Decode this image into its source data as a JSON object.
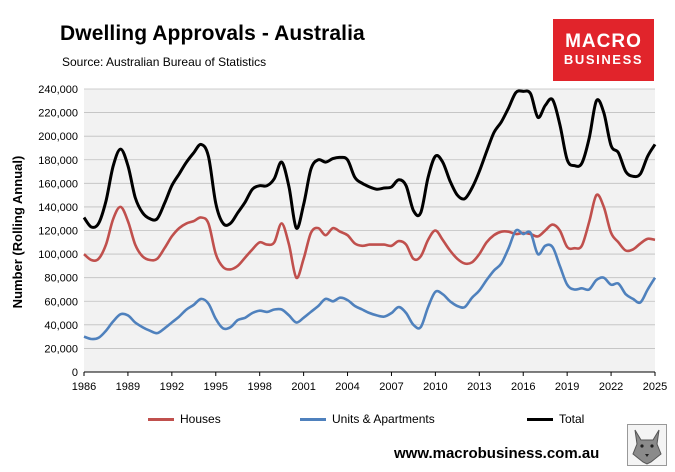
{
  "header": {
    "title": "Dwelling Approvals - Australia",
    "source": "Source: Australian Bureau of Statistics",
    "logo_line1": "MACRO",
    "logo_line2": "BUSINESS"
  },
  "footer": {
    "website": "www.macrobusiness.com.au"
  },
  "chart_data": {
    "type": "line",
    "title": "Dwelling Approvals - Australia",
    "xlabel": "",
    "ylabel": "Number (Rolling Annual)",
    "ylim": [
      0,
      240000
    ],
    "xlim": [
      1986,
      2025
    ],
    "yticks": [
      0,
      20000,
      40000,
      60000,
      80000,
      100000,
      120000,
      140000,
      160000,
      180000,
      200000,
      220000,
      240000
    ],
    "ytick_labels": [
      "0",
      "20,000",
      "40,000",
      "60,000",
      "80,000",
      "100,000",
      "120,000",
      "140,000",
      "160,000",
      "180,000",
      "200,000",
      "220,000",
      "240,000"
    ],
    "xticks": [
      1986,
      1989,
      1992,
      1995,
      1998,
      2001,
      2004,
      2007,
      2010,
      2013,
      2016,
      2019,
      2022,
      2025
    ],
    "xtick_labels": [
      "1986",
      "1989",
      "1992",
      "1995",
      "1998",
      "2001",
      "2004",
      "2007",
      "2010",
      "2013",
      "2016",
      "2019",
      "2022",
      "2025"
    ],
    "grid": "horizontal",
    "legend_position": "bottom",
    "colors": {
      "Houses": "#c0504d",
      "Units & Apartments": "#4f81bd",
      "Total": "#000000"
    },
    "series": [
      {
        "name": "Houses",
        "points": [
          [
            1986,
            100000
          ],
          [
            1986.5,
            95000
          ],
          [
            1987,
            96000
          ],
          [
            1987.5,
            108000
          ],
          [
            1988,
            130000
          ],
          [
            1988.5,
            140000
          ],
          [
            1989,
            128000
          ],
          [
            1989.5,
            108000
          ],
          [
            1990,
            98000
          ],
          [
            1990.5,
            95000
          ],
          [
            1991,
            96000
          ],
          [
            1991.5,
            105000
          ],
          [
            1992,
            115000
          ],
          [
            1992.5,
            122000
          ],
          [
            1993,
            126000
          ],
          [
            1993.5,
            128000
          ],
          [
            1994,
            131000
          ],
          [
            1994.5,
            126000
          ],
          [
            1995,
            100000
          ],
          [
            1995.5,
            89000
          ],
          [
            1996,
            87000
          ],
          [
            1996.5,
            90000
          ],
          [
            1997,
            97000
          ],
          [
            1997.5,
            104000
          ],
          [
            1998,
            110000
          ],
          [
            1998.5,
            108000
          ],
          [
            1999,
            110000
          ],
          [
            1999.5,
            126000
          ],
          [
            2000,
            108000
          ],
          [
            2000.5,
            80000
          ],
          [
            2001,
            96000
          ],
          [
            2001.5,
            118000
          ],
          [
            2002,
            122000
          ],
          [
            2002.5,
            116000
          ],
          [
            2003,
            122000
          ],
          [
            2003.5,
            119000
          ],
          [
            2004,
            116000
          ],
          [
            2004.5,
            109000
          ],
          [
            2005,
            107000
          ],
          [
            2005.5,
            108000
          ],
          [
            2006,
            108000
          ],
          [
            2006.5,
            108000
          ],
          [
            2007,
            107000
          ],
          [
            2007.5,
            111000
          ],
          [
            2008,
            108000
          ],
          [
            2008.5,
            96000
          ],
          [
            2009,
            98000
          ],
          [
            2009.5,
            112000
          ],
          [
            2010,
            120000
          ],
          [
            2010.5,
            112000
          ],
          [
            2011,
            103000
          ],
          [
            2011.5,
            96000
          ],
          [
            2012,
            92000
          ],
          [
            2012.5,
            93000
          ],
          [
            2013,
            100000
          ],
          [
            2013.5,
            110000
          ],
          [
            2014,
            116000
          ],
          [
            2014.5,
            119000
          ],
          [
            2015,
            119000
          ],
          [
            2015.5,
            117000
          ],
          [
            2016,
            118000
          ],
          [
            2016.5,
            117000
          ],
          [
            2017,
            115000
          ],
          [
            2017.5,
            120000
          ],
          [
            2018,
            125000
          ],
          [
            2018.5,
            120000
          ],
          [
            2019,
            106000
          ],
          [
            2019.5,
            105000
          ],
          [
            2020,
            107000
          ],
          [
            2020.5,
            127000
          ],
          [
            2021,
            150000
          ],
          [
            2021.5,
            140000
          ],
          [
            2022,
            118000
          ],
          [
            2022.5,
            110000
          ],
          [
            2023,
            103000
          ],
          [
            2023.5,
            104000
          ],
          [
            2024,
            109000
          ],
          [
            2024.5,
            113000
          ],
          [
            2025,
            112000
          ]
        ]
      },
      {
        "name": "Units & Apartments",
        "points": [
          [
            1986,
            30000
          ],
          [
            1986.5,
            28000
          ],
          [
            1987,
            29000
          ],
          [
            1987.5,
            35000
          ],
          [
            1988,
            43000
          ],
          [
            1988.5,
            49000
          ],
          [
            1989,
            48000
          ],
          [
            1989.5,
            42000
          ],
          [
            1990,
            38000
          ],
          [
            1990.5,
            35000
          ],
          [
            1991,
            33000
          ],
          [
            1991.5,
            37000
          ],
          [
            1992,
            42000
          ],
          [
            1992.5,
            47000
          ],
          [
            1993,
            53000
          ],
          [
            1993.5,
            57000
          ],
          [
            1994,
            62000
          ],
          [
            1994.5,
            58000
          ],
          [
            1995,
            45000
          ],
          [
            1995.5,
            37000
          ],
          [
            1996,
            38000
          ],
          [
            1996.5,
            44000
          ],
          [
            1997,
            46000
          ],
          [
            1997.5,
            50000
          ],
          [
            1998,
            52000
          ],
          [
            1998.5,
            51000
          ],
          [
            1999,
            53000
          ],
          [
            1999.5,
            53000
          ],
          [
            2000,
            48000
          ],
          [
            2000.5,
            42000
          ],
          [
            2001,
            46000
          ],
          [
            2001.5,
            51000
          ],
          [
            2002,
            56000
          ],
          [
            2002.5,
            62000
          ],
          [
            2003,
            60000
          ],
          [
            2003.5,
            63000
          ],
          [
            2004,
            61000
          ],
          [
            2004.5,
            56000
          ],
          [
            2005,
            53000
          ],
          [
            2005.5,
            50000
          ],
          [
            2006,
            48000
          ],
          [
            2006.5,
            47000
          ],
          [
            2007,
            50000
          ],
          [
            2007.5,
            55000
          ],
          [
            2008,
            50000
          ],
          [
            2008.5,
            40000
          ],
          [
            2009,
            38000
          ],
          [
            2009.5,
            55000
          ],
          [
            2010,
            68000
          ],
          [
            2010.5,
            66000
          ],
          [
            2011,
            60000
          ],
          [
            2011.5,
            56000
          ],
          [
            2012,
            55000
          ],
          [
            2012.5,
            63000
          ],
          [
            2013,
            69000
          ],
          [
            2013.5,
            78000
          ],
          [
            2014,
            86000
          ],
          [
            2014.5,
            92000
          ],
          [
            2015,
            105000
          ],
          [
            2015.5,
            120000
          ],
          [
            2016,
            117000
          ],
          [
            2016.5,
            118000
          ],
          [
            2017,
            100000
          ],
          [
            2017.5,
            107000
          ],
          [
            2018,
            106000
          ],
          [
            2018.5,
            90000
          ],
          [
            2019,
            74000
          ],
          [
            2019.5,
            70000
          ],
          [
            2020,
            71000
          ],
          [
            2020.5,
            70000
          ],
          [
            2021,
            78000
          ],
          [
            2021.5,
            80000
          ],
          [
            2022,
            74000
          ],
          [
            2022.5,
            75000
          ],
          [
            2023,
            66000
          ],
          [
            2023.5,
            62000
          ],
          [
            2024,
            59000
          ],
          [
            2024.5,
            70000
          ],
          [
            2025,
            80000
          ]
        ]
      },
      {
        "name": "Total",
        "points": [
          [
            1986,
            131000
          ],
          [
            1986.5,
            123000
          ],
          [
            1987,
            126000
          ],
          [
            1987.5,
            145000
          ],
          [
            1988,
            175000
          ],
          [
            1988.5,
            189000
          ],
          [
            1989,
            175000
          ],
          [
            1989.5,
            148000
          ],
          [
            1990,
            135000
          ],
          [
            1990.5,
            130000
          ],
          [
            1991,
            130000
          ],
          [
            1991.5,
            143000
          ],
          [
            1992,
            158000
          ],
          [
            1992.5,
            168000
          ],
          [
            1993,
            178000
          ],
          [
            1993.5,
            186000
          ],
          [
            1994,
            193000
          ],
          [
            1994.5,
            183000
          ],
          [
            1995,
            143000
          ],
          [
            1995.5,
            126000
          ],
          [
            1996,
            126000
          ],
          [
            1996.5,
            135000
          ],
          [
            1997,
            144000
          ],
          [
            1997.5,
            155000
          ],
          [
            1998,
            158000
          ],
          [
            1998.5,
            158000
          ],
          [
            1999,
            164000
          ],
          [
            1999.5,
            178000
          ],
          [
            2000,
            157000
          ],
          [
            2000.5,
            122000
          ],
          [
            2001,
            142000
          ],
          [
            2001.5,
            172000
          ],
          [
            2002,
            180000
          ],
          [
            2002.5,
            178000
          ],
          [
            2003,
            181000
          ],
          [
            2003.5,
            182000
          ],
          [
            2004,
            180000
          ],
          [
            2004.5,
            165000
          ],
          [
            2005,
            160000
          ],
          [
            2005.5,
            157000
          ],
          [
            2006,
            155000
          ],
          [
            2006.5,
            156000
          ],
          [
            2007,
            157000
          ],
          [
            2007.5,
            163000
          ],
          [
            2008,
            158000
          ],
          [
            2008.5,
            137000
          ],
          [
            2009,
            135000
          ],
          [
            2009.5,
            165000
          ],
          [
            2010,
            183000
          ],
          [
            2010.5,
            178000
          ],
          [
            2011,
            162000
          ],
          [
            2011.5,
            150000
          ],
          [
            2012,
            147000
          ],
          [
            2012.5,
            156000
          ],
          [
            2013,
            170000
          ],
          [
            2013.5,
            187000
          ],
          [
            2014,
            203000
          ],
          [
            2014.5,
            212000
          ],
          [
            2015,
            224000
          ],
          [
            2015.5,
            237000
          ],
          [
            2016,
            238000
          ],
          [
            2016.5,
            236000
          ],
          [
            2017,
            216000
          ],
          [
            2017.5,
            226000
          ],
          [
            2018,
            231000
          ],
          [
            2018.5,
            210000
          ],
          [
            2019,
            180000
          ],
          [
            2019.5,
            175000
          ],
          [
            2020,
            177000
          ],
          [
            2020.5,
            198000
          ],
          [
            2021,
            230000
          ],
          [
            2021.5,
            220000
          ],
          [
            2022,
            192000
          ],
          [
            2022.5,
            186000
          ],
          [
            2023,
            170000
          ],
          [
            2023.5,
            166000
          ],
          [
            2024,
            168000
          ],
          [
            2024.5,
            183000
          ],
          [
            2025,
            193000
          ]
        ]
      }
    ]
  }
}
